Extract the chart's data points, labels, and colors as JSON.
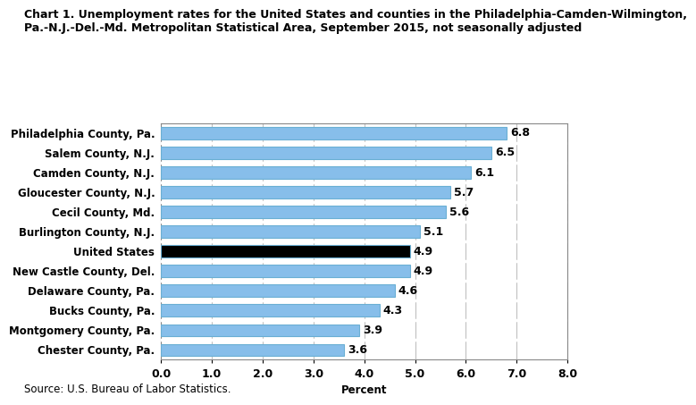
{
  "categories": [
    "Chester County, Pa.",
    "Montgomery County, Pa.",
    "Bucks County, Pa.",
    "Delaware County, Pa.",
    "New Castle County, Del.",
    "United States",
    "Burlington County, N.J.",
    "Cecil County, Md.",
    "Gloucester County, N.J.",
    "Camden County, N.J.",
    "Salem County, N.J.",
    "Philadelphia County, Pa."
  ],
  "values": [
    3.6,
    3.9,
    4.3,
    4.6,
    4.9,
    4.9,
    5.1,
    5.6,
    5.7,
    6.1,
    6.5,
    6.8
  ],
  "bar_colors": [
    "#87BEEA",
    "#87BEEA",
    "#87BEEA",
    "#87BEEA",
    "#87BEEA",
    "#000000",
    "#87BEEA",
    "#87BEEA",
    "#87BEEA",
    "#87BEEA",
    "#87BEEA",
    "#87BEEA"
  ],
  "title_line1": "Chart 1. Unemployment rates for the United States and counties in the Philadelphia-Camden-Wilmington,",
  "title_line2": "Pa.-N.J.-Del.-Md. Metropolitan Statistical Area, September 2015, not seasonally adjusted",
  "xlabel": "Percent",
  "xlim": [
    0.0,
    8.0
  ],
  "xticks": [
    0.0,
    1.0,
    2.0,
    3.0,
    4.0,
    5.0,
    6.0,
    7.0,
    8.0
  ],
  "source": "Source: U.S. Bureau of Labor Statistics.",
  "title_fontsize": 9,
  "label_fontsize": 8.5,
  "tick_fontsize": 9,
  "value_fontsize": 9,
  "bar_height": 0.62,
  "bar_edgecolor": "#6aafd4",
  "grid_color": "#c0c0c0",
  "bg_color": "#ffffff"
}
